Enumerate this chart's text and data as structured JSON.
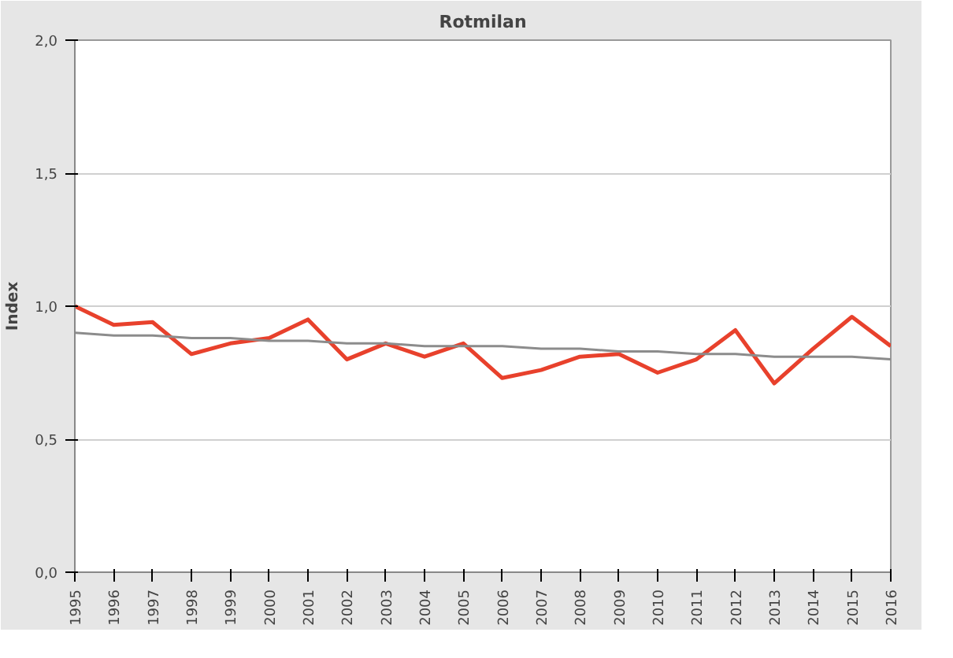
{
  "chart_data": {
    "type": "line",
    "title": "Rotmilan",
    "ylabel": "Index",
    "categories": [
      "1995",
      "1996",
      "1997",
      "1998",
      "1999",
      "2000",
      "2001",
      "2002",
      "2003",
      "2004",
      "2005",
      "2006",
      "2007",
      "2008",
      "2009",
      "2010",
      "2011",
      "2012",
      "2013",
      "2014",
      "2015",
      "2016"
    ],
    "series": [
      {
        "color": "#e8412c",
        "values": [
          1.0,
          0.93,
          0.94,
          0.82,
          0.86,
          0.88,
          0.95,
          0.8,
          0.86,
          0.81,
          0.86,
          0.73,
          0.76,
          0.81,
          0.82,
          0.75,
          0.8,
          0.91,
          0.71,
          0.84,
          0.96,
          0.85
        ]
      },
      {
        "type": "line",
        "color": "#8c8c8c",
        "values": [
          0.9,
          0.89,
          0.89,
          0.88,
          0.88,
          0.87,
          0.87,
          0.86,
          0.86,
          0.85,
          0.85,
          0.85,
          0.84,
          0.84,
          0.83,
          0.83,
          0.82,
          0.82,
          0.81,
          0.81,
          0.81,
          0.8
        ]
      }
    ],
    "ylim": [
      0,
      2
    ],
    "yticks": [
      {
        "value": 0,
        "label": "0,0"
      },
      {
        "value": 0.5,
        "label": "0,5"
      },
      {
        "value": 1,
        "label": "1,0"
      },
      {
        "value": 1.5,
        "label": "1,5"
      },
      {
        "value": 2,
        "label": "2,0"
      }
    ],
    "grid": "y"
  }
}
